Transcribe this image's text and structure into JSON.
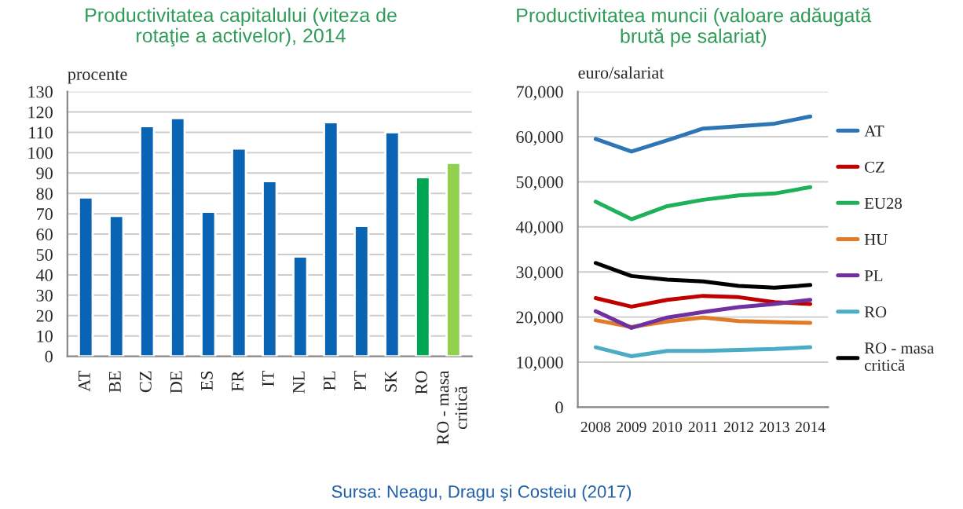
{
  "chart_data": [
    {
      "type": "bar",
      "title": "Productivitatea capitalului (viteza de rotaţie a activelor), 2014",
      "ylabel": "procente",
      "categories": [
        "AT",
        "BE",
        "CZ",
        "DE",
        "ES",
        "FR",
        "IT",
        "NL",
        "PL",
        "PT",
        "SK",
        "RO",
        "RO - masa critică"
      ],
      "values": [
        78,
        69,
        113,
        117,
        71,
        102,
        86,
        49,
        115,
        64,
        110,
        88,
        95
      ],
      "colors": [
        "#0a64b4",
        "#0a64b4",
        "#0a64b4",
        "#0a64b4",
        "#0a64b4",
        "#0a64b4",
        "#0a64b4",
        "#0a64b4",
        "#0a64b4",
        "#0a64b4",
        "#0a64b4",
        "#00a651",
        "#92d050"
      ],
      "ylim": [
        0,
        130
      ],
      "yticks": [
        0,
        10,
        20,
        30,
        40,
        50,
        60,
        70,
        80,
        90,
        100,
        110,
        120,
        130
      ],
      "grid": "y",
      "annotations": [
        "Sursa: Neagu, Dragu şi Costeiu (2017)"
      ]
    },
    {
      "type": "line",
      "title": "Productivitatea muncii (valoare adăugată brută pe salariat)",
      "ylabel": "euro/salariat",
      "categories": [
        "2008",
        "2009",
        "2010",
        "2011",
        "2012",
        "2013",
        "2014"
      ],
      "series": [
        {
          "name": "AT",
          "color": "#2e75b6",
          "values": [
            59500,
            56700,
            59200,
            61800,
            62300,
            62900,
            64500
          ]
        },
        {
          "name": "CZ",
          "color": "#c00000",
          "values": [
            24200,
            22300,
            23800,
            24700,
            24400,
            23300,
            22900
          ]
        },
        {
          "name": "EU28",
          "color": "#1fb05a",
          "values": [
            45600,
            41700,
            44600,
            46000,
            47000,
            47400,
            48800
          ]
        },
        {
          "name": "HU",
          "color": "#e07b28",
          "values": [
            19300,
            17800,
            19000,
            19900,
            19100,
            18900,
            18700
          ]
        },
        {
          "name": "PL",
          "color": "#7030a0",
          "values": [
            21300,
            17600,
            19900,
            21100,
            22200,
            22900,
            23800
          ]
        },
        {
          "name": "RO",
          "color": "#4bacc6",
          "values": [
            13300,
            11300,
            12500,
            12500,
            12700,
            12900,
            13300
          ]
        },
        {
          "name": "RO - masa critică",
          "color": "#000000",
          "values": [
            32000,
            29100,
            28300,
            27900,
            26900,
            26500,
            27100
          ]
        }
      ],
      "ylim": [
        0,
        70000
      ],
      "yticks": [
        0,
        {
          "value": 10000,
          "label": "10,000"
        },
        {
          "value": 20000,
          "label": "20,000"
        },
        {
          "value": 30000,
          "label": "30,000"
        },
        {
          "value": 40000,
          "label": "40,000"
        },
        {
          "value": 50000,
          "label": "50,000"
        },
        {
          "value": 60000,
          "label": "60,000"
        },
        {
          "value": 70000,
          "label": "70,000"
        }
      ],
      "grid": "y",
      "legend": "right",
      "marker": "none",
      "line_style": "solid"
    }
  ]
}
